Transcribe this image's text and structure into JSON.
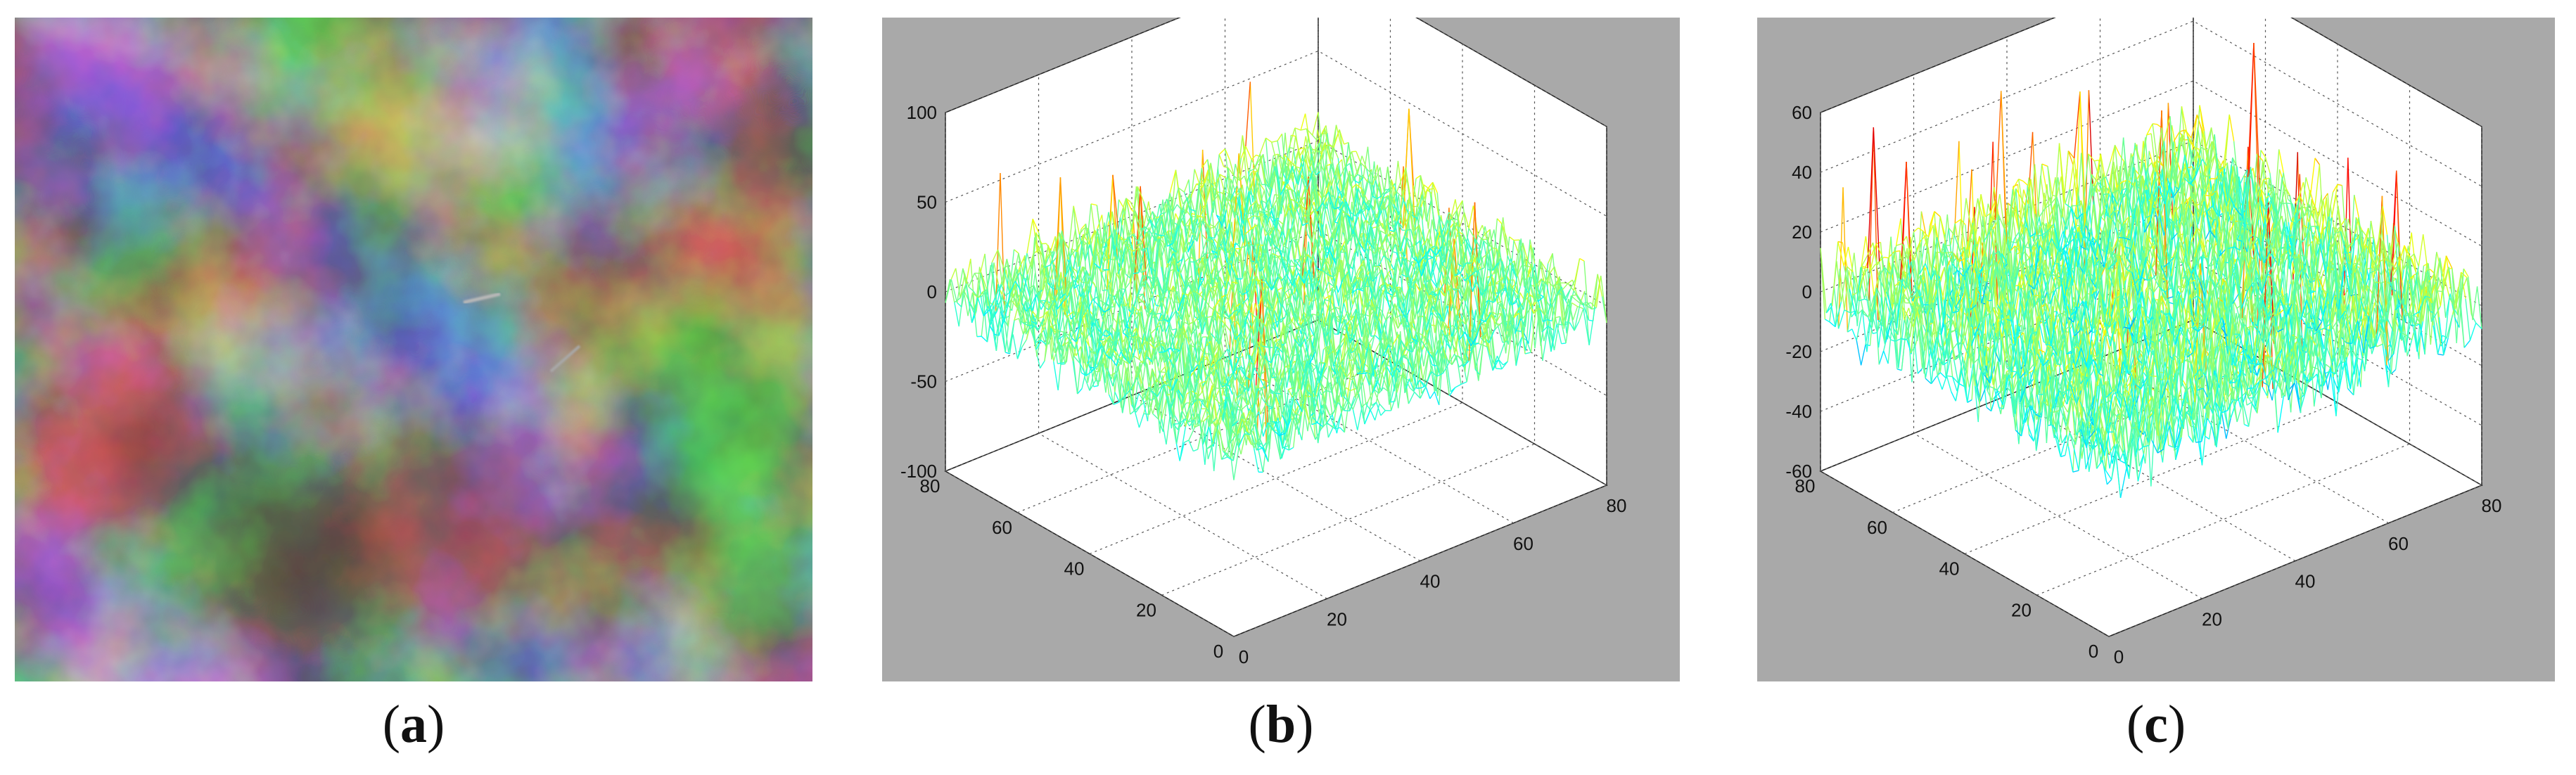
{
  "captions": {
    "a": "a",
    "b": "b",
    "c": "c"
  },
  "colors": {
    "plot_bg": "#a9a9a9",
    "axes_bg": "#ffffff",
    "grid": "#555555"
  },
  "chart_data": [
    {
      "panel": "a",
      "type": "image",
      "description_visible": "grayscale cloud image with two faint streak targets"
    },
    {
      "panel": "b",
      "type": "surface",
      "zlim": [
        -100,
        100
      ],
      "zticks": [
        "100",
        "50",
        "0",
        "-50",
        "-100"
      ],
      "xlim": [
        0,
        80
      ],
      "xticks": [
        "0",
        "20",
        "40",
        "60",
        "80"
      ],
      "ylim": [
        0,
        80
      ],
      "yticks": [
        "0",
        "20",
        "40",
        "60",
        "80"
      ],
      "amplitude": 22,
      "peak": 75,
      "grid": true
    },
    {
      "panel": "c",
      "type": "surface",
      "zlim": [
        -60,
        60
      ],
      "zticks": [
        "60",
        "40",
        "20",
        "0",
        "-20",
        "-40",
        "-60"
      ],
      "xlim": [
        0,
        80
      ],
      "xticks": [
        "0",
        "20",
        "40",
        "60",
        "80"
      ],
      "ylim": [
        0,
        80
      ],
      "yticks": [
        "0",
        "20",
        "40",
        "60",
        "80"
      ],
      "amplitude": 18,
      "peak": 55,
      "grid": true
    }
  ]
}
